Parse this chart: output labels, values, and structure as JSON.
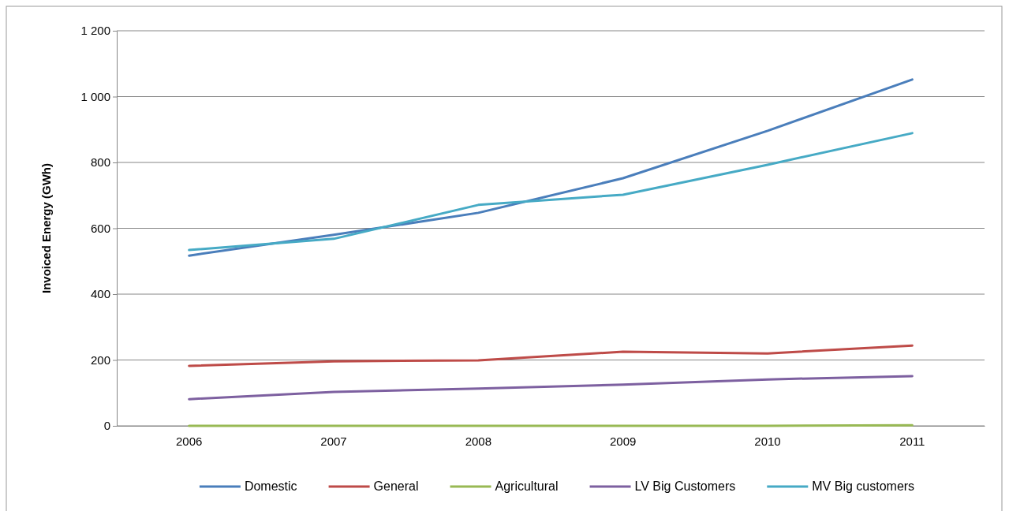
{
  "chart_data": {
    "type": "line",
    "ylabel": "Invoiced Energy (GWh)",
    "categories": [
      "2006",
      "2007",
      "2008",
      "2009",
      "2010",
      "2011"
    ],
    "series": [
      {
        "name": "Domestic",
        "color": "#4a7ebb",
        "values": [
          517,
          580,
          647,
          752,
          896,
          1052
        ]
      },
      {
        "name": "General",
        "color": "#be4b48",
        "values": [
          182,
          196,
          199,
          225,
          220,
          244
        ]
      },
      {
        "name": "Agricultural",
        "color": "#98b954",
        "values": [
          0,
          0,
          0,
          0,
          0,
          2
        ]
      },
      {
        "name": "LV Big Customers",
        "color": "#7d60a0",
        "values": [
          81,
          103,
          113,
          125,
          141,
          151
        ]
      },
      {
        "name": "MV Big customers",
        "color": "#46aac5",
        "values": [
          534,
          568,
          671,
          702,
          793,
          889
        ]
      }
    ],
    "ylim": [
      0,
      1200
    ],
    "yticks": [
      0,
      200,
      400,
      600,
      800,
      {
        "value": 1000,
        "label": "1 000"
      },
      {
        "value": 1200,
        "label": "1 200"
      }
    ],
    "grid": "y",
    "legend": "bottom",
    "marker": "none",
    "line_style": "solid"
  }
}
